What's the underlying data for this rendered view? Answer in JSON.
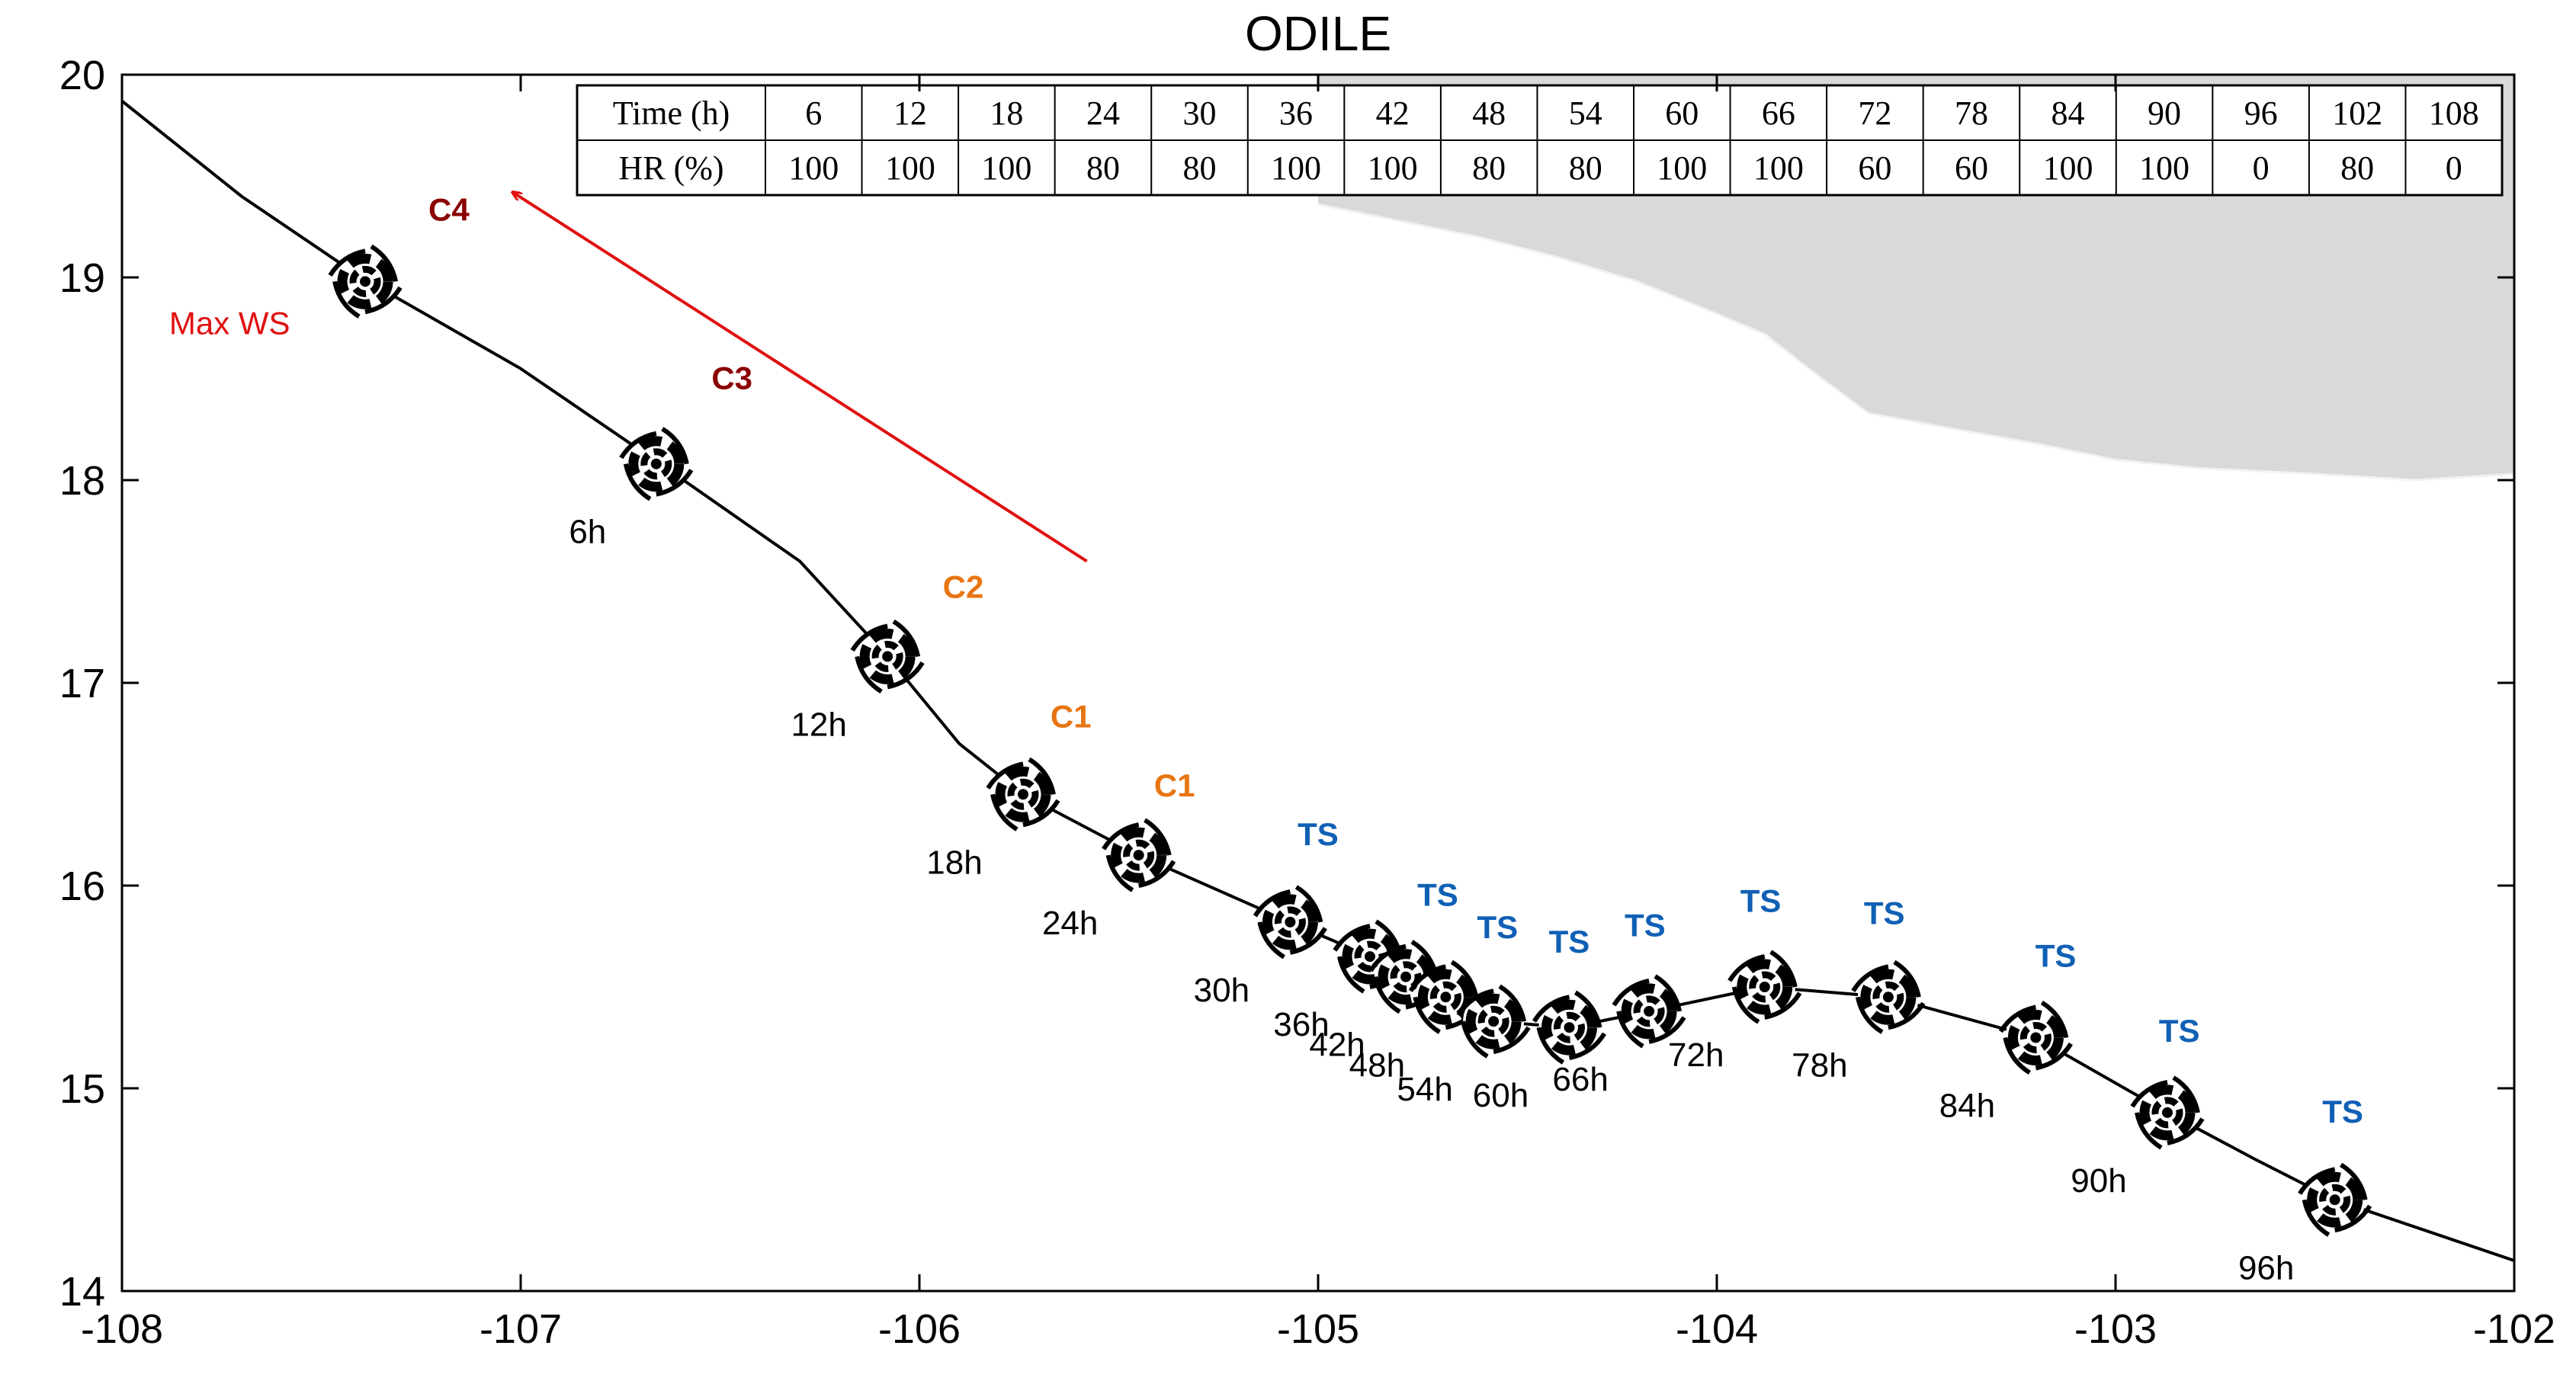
{
  "chart_data": {
    "type": "line",
    "title": "ODILE",
    "xlabel": "",
    "ylabel": "",
    "xlim": [
      -108,
      -102
    ],
    "ylim": [
      14,
      20
    ],
    "x_ticks": [
      -108,
      -107,
      -106,
      -105,
      -104,
      -103,
      -102
    ],
    "y_ticks": [
      14,
      15,
      16,
      17,
      18,
      19,
      20
    ],
    "track": [
      [
        -108.0,
        19.87
      ],
      [
        -107.7,
        19.4
      ],
      [
        -107.4,
        19.0
      ],
      [
        -107.0,
        18.55
      ],
      [
        -106.65,
        18.08
      ],
      [
        -106.3,
        17.6
      ],
      [
        -106.08,
        17.13
      ],
      [
        -105.9,
        16.7
      ],
      [
        -105.74,
        16.45
      ],
      [
        -105.45,
        16.15
      ],
      [
        -105.07,
        15.82
      ],
      [
        -104.87,
        15.65
      ],
      [
        -104.78,
        15.55
      ],
      [
        -104.68,
        15.45
      ],
      [
        -104.56,
        15.33
      ],
      [
        -104.37,
        15.3
      ],
      [
        -104.17,
        15.38
      ],
      [
        -103.88,
        15.5
      ],
      [
        -103.57,
        15.45
      ],
      [
        -103.2,
        15.25
      ],
      [
        -102.87,
        14.88
      ],
      [
        -102.65,
        14.65
      ],
      [
        -102.45,
        14.45
      ],
      [
        -102.0,
        14.15
      ]
    ],
    "storm_positions": [
      {
        "lon": -107.39,
        "lat": 18.98,
        "hour": "",
        "category": "C4",
        "cat_lon": -107.18,
        "cat_lat": 19.28
      },
      {
        "lon": -106.66,
        "lat": 18.08,
        "hour": "6h",
        "category": "C3",
        "cat_lon": -106.47,
        "cat_lat": 18.45
      },
      {
        "lon": -106.08,
        "lat": 17.13,
        "hour": "12h",
        "category": "C2",
        "cat_lon": -105.89,
        "cat_lat": 17.42
      },
      {
        "lon": -105.74,
        "lat": 16.45,
        "hour": "18h",
        "category": "C1",
        "cat_lon": -105.62,
        "cat_lat": 16.78
      },
      {
        "lon": -105.45,
        "lat": 16.15,
        "hour": "24h",
        "category": "C1",
        "cat_lon": -105.36,
        "cat_lat": 16.44
      },
      {
        "lon": -105.07,
        "lat": 15.82,
        "hour": "30h",
        "category": "TS",
        "cat_lon": -105.0,
        "cat_lat": 16.2
      },
      {
        "lon": -104.87,
        "lat": 15.65,
        "hour": "36h",
        "category": "",
        "cat_lon": 0,
        "cat_lat": 0
      },
      {
        "lon": -104.78,
        "lat": 15.55,
        "hour": "42h",
        "category": "TS",
        "cat_lon": -104.7,
        "cat_lat": 15.9
      },
      {
        "lon": -104.68,
        "lat": 15.45,
        "hour": "48h",
        "category": "",
        "cat_lon": 0,
        "cat_lat": 0
      },
      {
        "lon": -104.56,
        "lat": 15.33,
        "hour": "54h",
        "category": "TS",
        "cat_lon": -104.55,
        "cat_lat": 15.74
      },
      {
        "lon": -104.37,
        "lat": 15.3,
        "hour": "60h",
        "category": "TS",
        "cat_lon": -104.37,
        "cat_lat": 15.67
      },
      {
        "lon": -104.17,
        "lat": 15.38,
        "hour": "66h",
        "category": "TS",
        "cat_lon": -104.18,
        "cat_lat": 15.75
      },
      {
        "lon": -103.88,
        "lat": 15.5,
        "hour": "72h",
        "category": "TS",
        "cat_lon": -103.89,
        "cat_lat": 15.87
      },
      {
        "lon": -103.57,
        "lat": 15.45,
        "hour": "78h",
        "category": "TS",
        "cat_lon": -103.58,
        "cat_lat": 15.81
      },
      {
        "lon": -103.2,
        "lat": 15.25,
        "hour": "84h",
        "category": "TS",
        "cat_lon": -103.15,
        "cat_lat": 15.6
      },
      {
        "lon": -102.87,
        "lat": 14.88,
        "hour": "90h",
        "category": "TS",
        "cat_lon": -102.84,
        "cat_lat": 15.23
      },
      {
        "lon": -102.45,
        "lat": 14.45,
        "hour": "96h",
        "category": "TS",
        "cat_lon": -102.43,
        "cat_lat": 14.83
      }
    ],
    "category_colors": {
      "C4": "#8b0000",
      "C3": "#8b0000",
      "C2": "#e87511",
      "C1": "#e87511",
      "TS": "#1060b5"
    },
    "annotation": {
      "text": "Max WS",
      "color": "#e01010",
      "arrow_from": [
        -105.58,
        17.6
      ],
      "arrow_to": [
        -107.02,
        19.42
      ],
      "text_lon": -107.73,
      "text_lat": 18.72
    },
    "coastline": [
      [
        -105.0,
        19.36
      ],
      [
        -104.8,
        19.28
      ],
      [
        -104.6,
        19.2
      ],
      [
        -104.4,
        19.1
      ],
      [
        -104.2,
        18.98
      ],
      [
        -104.0,
        18.82
      ],
      [
        -103.88,
        18.72
      ],
      [
        -103.75,
        18.52
      ],
      [
        -103.62,
        18.33
      ],
      [
        -103.4,
        18.25
      ],
      [
        -103.2,
        18.18
      ],
      [
        -103.0,
        18.1
      ],
      [
        -102.8,
        18.06
      ],
      [
        -102.5,
        18.03
      ],
      [
        -102.25,
        18.0
      ],
      [
        -102.0,
        18.03
      ]
    ],
    "land_color": "#d9d9d9",
    "table": {
      "row_headers": [
        "Time (h)",
        "HR (%)"
      ],
      "time": [
        "6",
        "12",
        "18",
        "24",
        "30",
        "36",
        "42",
        "48",
        "54",
        "60",
        "66",
        "72",
        "78",
        "84",
        "90",
        "96",
        "102",
        "108"
      ],
      "hr": [
        "100",
        "100",
        "100",
        "80",
        "80",
        "100",
        "100",
        "80",
        "80",
        "100",
        "100",
        "60",
        "60",
        "100",
        "100",
        "0",
        "80",
        "0"
      ]
    }
  }
}
